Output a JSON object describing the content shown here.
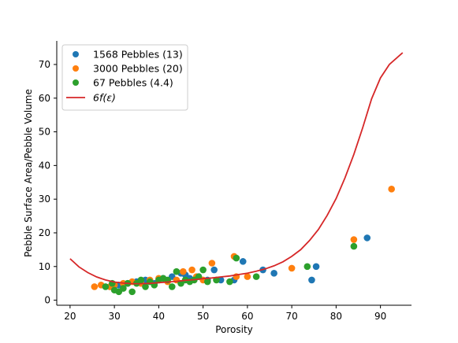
{
  "chart_data": {
    "type": "scatter",
    "xlabel": "Porosity",
    "ylabel": "Pebble Surface Area/Pebble Volume",
    "xlim": [
      17,
      97
    ],
    "ylim": [
      -1.5,
      77
    ],
    "xticks": [
      "20",
      "30",
      "40",
      "50",
      "60",
      "70",
      "80",
      "90"
    ],
    "yticks": [
      "0",
      "10",
      "20",
      "30",
      "40",
      "50",
      "60",
      "70"
    ],
    "grid": false,
    "legend_position": "top-left",
    "series": [
      {
        "name": "1568 Pebbles (13)",
        "color": "#1f77b4",
        "marker": "circle",
        "points": [
          [
            29,
            4
          ],
          [
            31,
            4.5
          ],
          [
            33,
            5
          ],
          [
            35,
            5.5
          ],
          [
            37,
            6
          ],
          [
            39,
            5
          ],
          [
            41,
            6.5
          ],
          [
            43,
            7
          ],
          [
            45,
            8
          ],
          [
            46,
            7.5
          ],
          [
            47,
            6.5
          ],
          [
            49,
            7
          ],
          [
            51,
            6
          ],
          [
            52.5,
            9
          ],
          [
            54,
            6
          ],
          [
            57,
            6
          ],
          [
            59,
            11.5
          ],
          [
            63.5,
            9
          ],
          [
            66,
            8
          ],
          [
            74.5,
            6
          ],
          [
            75.5,
            10
          ],
          [
            87,
            18.5
          ]
        ]
      },
      {
        "name": "3000 Pebbles (20)",
        "color": "#ff7f0e",
        "marker": "circle",
        "points": [
          [
            25.5,
            4
          ],
          [
            27,
            4.5
          ],
          [
            29,
            4
          ],
          [
            30,
            4.5
          ],
          [
            32,
            5
          ],
          [
            34,
            5.5
          ],
          [
            36,
            5
          ],
          [
            38,
            6
          ],
          [
            40,
            6.5
          ],
          [
            42,
            5.5
          ],
          [
            44,
            6
          ],
          [
            45.5,
            8.5
          ],
          [
            47.5,
            9
          ],
          [
            48.5,
            7
          ],
          [
            50,
            6
          ],
          [
            52,
            11
          ],
          [
            57,
            13
          ],
          [
            57.5,
            7
          ],
          [
            60,
            7
          ],
          [
            70,
            9.5
          ],
          [
            84,
            18
          ],
          [
            92.5,
            33
          ]
        ]
      },
      {
        "name": "67 Pebbles (4.4)",
        "color": "#2ca02c",
        "marker": "circle",
        "points": [
          [
            28,
            4
          ],
          [
            29.5,
            5
          ],
          [
            30,
            3
          ],
          [
            31,
            2.5
          ],
          [
            32,
            3.5
          ],
          [
            33,
            5
          ],
          [
            34,
            2.5
          ],
          [
            35,
            5
          ],
          [
            36,
            6
          ],
          [
            37,
            4
          ],
          [
            38,
            5.5
          ],
          [
            39,
            4.5
          ],
          [
            40,
            6
          ],
          [
            41,
            6.5
          ],
          [
            42,
            6
          ],
          [
            43,
            4
          ],
          [
            44,
            8.5
          ],
          [
            45,
            5
          ],
          [
            46,
            6
          ],
          [
            47,
            5.5
          ],
          [
            48,
            6
          ],
          [
            49,
            7
          ],
          [
            50,
            9
          ],
          [
            51,
            5.5
          ],
          [
            53,
            6
          ],
          [
            56,
            5.5
          ],
          [
            57.5,
            12.5
          ],
          [
            62,
            7
          ],
          [
            73.5,
            10
          ],
          [
            84,
            16
          ]
        ]
      }
    ],
    "curve": {
      "name": "6f(ε)",
      "color": "#d62728",
      "type": "line",
      "points": [
        [
          20,
          12.3
        ],
        [
          22,
          9.9
        ],
        [
          24,
          8.2
        ],
        [
          26,
          6.9
        ],
        [
          28,
          6.0
        ],
        [
          30,
          5.4
        ],
        [
          32,
          5.1
        ],
        [
          34,
          4.9
        ],
        [
          36,
          4.9
        ],
        [
          38,
          5.0
        ],
        [
          40,
          5.2
        ],
        [
          42,
          5.4
        ],
        [
          44,
          5.6
        ],
        [
          46,
          5.9
        ],
        [
          48,
          6.1
        ],
        [
          50,
          6.4
        ],
        [
          52,
          6.6
        ],
        [
          54,
          6.9
        ],
        [
          56,
          7.2
        ],
        [
          58,
          7.6
        ],
        [
          60,
          8.0
        ],
        [
          62,
          8.6
        ],
        [
          64,
          9.3
        ],
        [
          66,
          10.2
        ],
        [
          68,
          11.4
        ],
        [
          70,
          13.0
        ],
        [
          72,
          15.0
        ],
        [
          74,
          17.7
        ],
        [
          76,
          21.0
        ],
        [
          78,
          25.2
        ],
        [
          80,
          30.2
        ],
        [
          82,
          36.3
        ],
        [
          84,
          43.3
        ],
        [
          86,
          51.2
        ],
        [
          88,
          59.8
        ],
        [
          90,
          66.0
        ],
        [
          92,
          70.0
        ],
        [
          95,
          73.5
        ]
      ]
    }
  }
}
